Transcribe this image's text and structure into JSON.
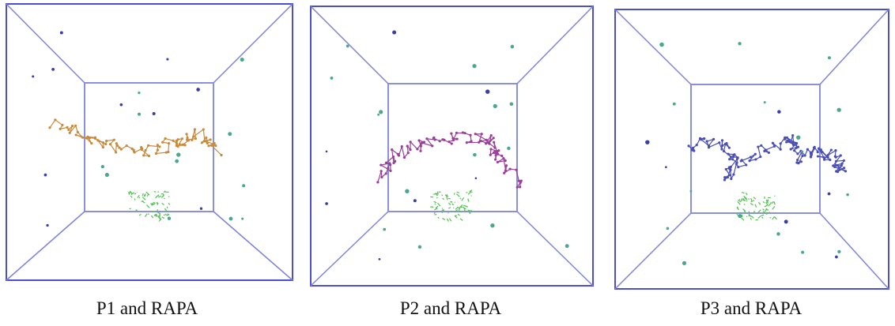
{
  "panels": [
    {
      "caption": "P1 and RAPA"
    },
    {
      "caption": "P2 and RAPA"
    },
    {
      "caption": "P3 and RAPA"
    }
  ]
}
